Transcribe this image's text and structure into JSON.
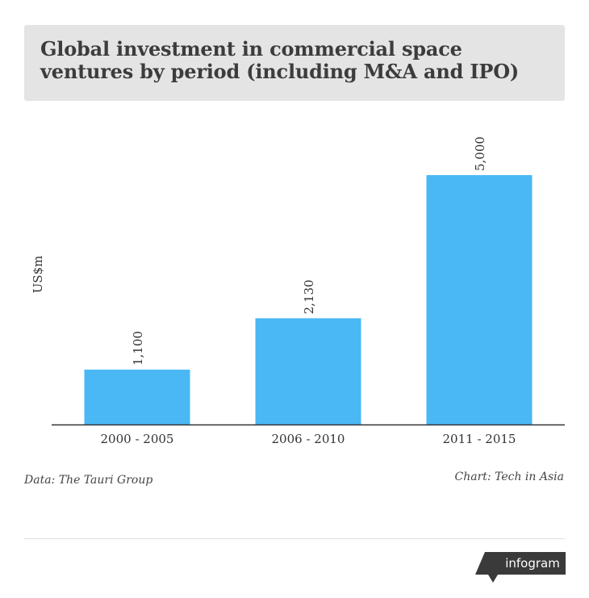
{
  "title": "Global investment in commercial space ventures by period (including M&A and IPO)",
  "source": "Data: The Tauri Group",
  "credit": "Chart: Tech in Asia",
  "brand": "infogram",
  "colors": {
    "bar": "#4ab8f4",
    "axis": "#333333",
    "title_bg": "#e4e4e4",
    "brand_bg": "#3a3a3a"
  },
  "chart_data": {
    "type": "bar",
    "categories": [
      "2000 - 2005",
      "2006 - 2010",
      "2011 - 2015"
    ],
    "values": [
      1100,
      2130,
      5000
    ],
    "value_labels": [
      "1,100",
      "2,130",
      "5,000"
    ],
    "ylabel": "US$m",
    "ylim": [
      0,
      5000
    ],
    "grid": false,
    "legend": "none"
  }
}
